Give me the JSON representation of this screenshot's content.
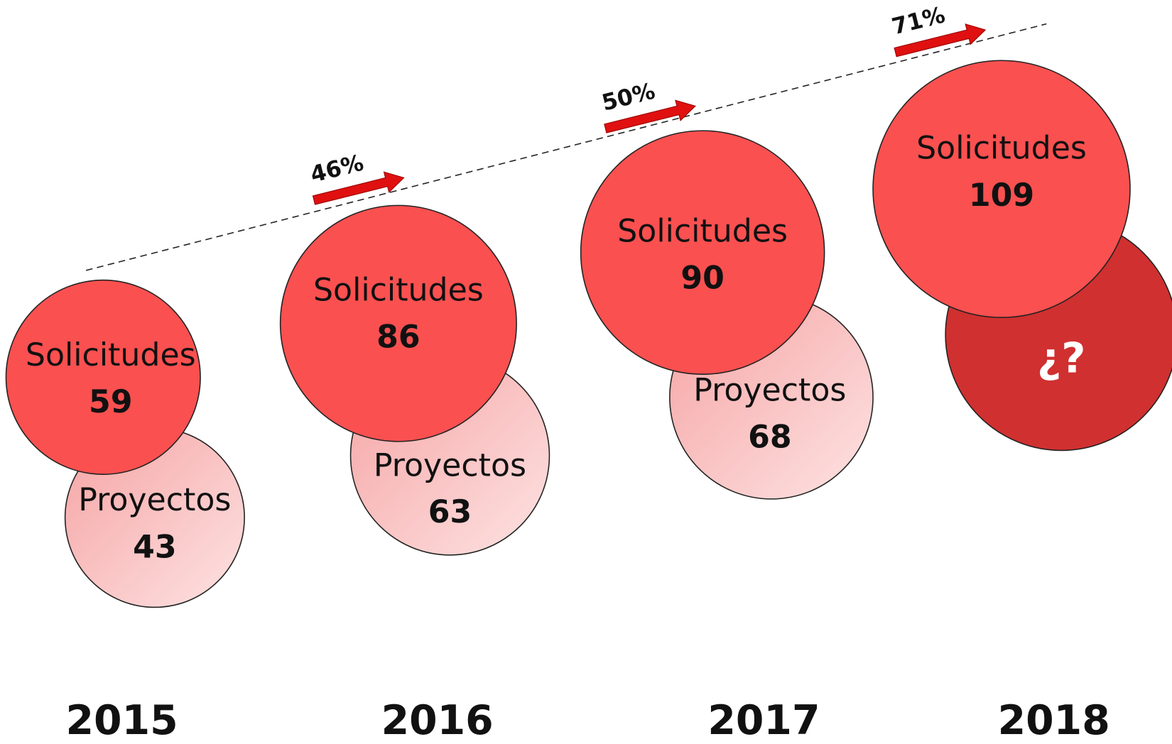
{
  "years": [
    {
      "year": "2015",
      "solicitudes_label": "Solicitudes",
      "solicitudes": 59,
      "proyectos_label": "Proyectos",
      "proyectos": 43
    },
    {
      "year": "2016",
      "solicitudes_label": "Solicitudes",
      "solicitudes": 86,
      "proyectos_label": "Proyectos",
      "proyectos": 63
    },
    {
      "year": "2017",
      "solicitudes_label": "Solicitudes",
      "solicitudes": 90,
      "proyectos_label": "Proyectos",
      "proyectos": 68
    },
    {
      "year": "2018",
      "solicitudes_label": "Solicitudes",
      "solicitudes": 109,
      "proyectos": "¿?"
    }
  ],
  "growth": [
    "46%",
    "50%",
    "71%"
  ]
}
